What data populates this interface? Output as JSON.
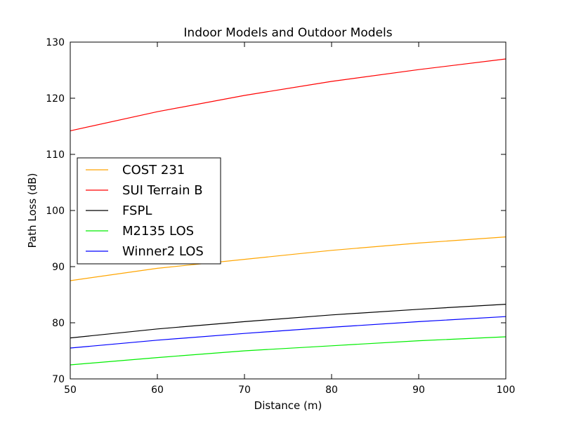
{
  "chart_data": {
    "type": "line",
    "title": "Indoor Models and Outdoor Models",
    "xlabel": "Distance (m)",
    "ylabel": "Path Loss (dB)",
    "xlim": [
      50,
      100
    ],
    "ylim": [
      70,
      130
    ],
    "xticks": [
      50,
      60,
      70,
      80,
      90,
      100
    ],
    "yticks": [
      70,
      80,
      90,
      100,
      110,
      120,
      130
    ],
    "grid": false,
    "legend_position": "center-left",
    "series": [
      {
        "name": "COST 231",
        "color": "#ffa500",
        "x": [
          50,
          60,
          70,
          80,
          90,
          100
        ],
        "y": [
          87.5,
          89.7,
          91.3,
          92.9,
          94.2,
          95.3
        ]
      },
      {
        "name": "SUI Terrain B",
        "color": "#ff0000",
        "x": [
          50,
          60,
          70,
          80,
          90,
          100
        ],
        "y": [
          114.2,
          117.6,
          120.5,
          123.0,
          125.1,
          127.0
        ]
      },
      {
        "name": "FSPL",
        "color": "#000000",
        "x": [
          50,
          60,
          70,
          80,
          90,
          100
        ],
        "y": [
          77.3,
          78.9,
          80.2,
          81.4,
          82.4,
          83.3
        ]
      },
      {
        "name": "M2135 LOS",
        "color": "#00ee00",
        "x": [
          50,
          60,
          70,
          80,
          90,
          100
        ],
        "y": [
          72.5,
          73.8,
          75.0,
          75.9,
          76.8,
          77.5
        ]
      },
      {
        "name": "Winner2 LOS",
        "color": "#0000ff",
        "x": [
          50,
          60,
          70,
          80,
          90,
          100
        ],
        "y": [
          75.5,
          76.9,
          78.1,
          79.2,
          80.2,
          81.1
        ]
      }
    ]
  }
}
